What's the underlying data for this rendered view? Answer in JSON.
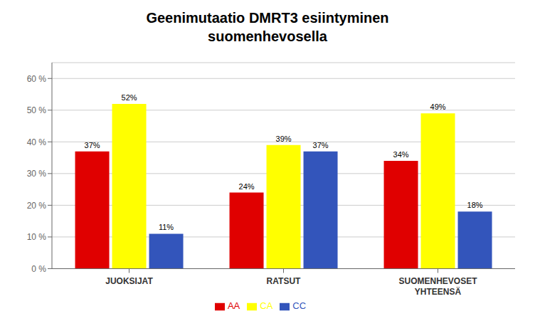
{
  "chart_data": {
    "type": "bar",
    "title": "Geenimutaatio DMRT3 esiintyminen\nsuomenhevosella",
    "categories": [
      "JUOKSIJAT",
      "RATSUT",
      "SUOMENHEVOSET\nYHTEENSÄ"
    ],
    "series": [
      {
        "name": "AA",
        "color": "#e00000",
        "values": [
          37,
          24,
          34
        ],
        "value_labels": [
          "37%",
          "24%",
          "34%"
        ]
      },
      {
        "name": "CA",
        "color": "#ffff00",
        "values": [
          52,
          39,
          49
        ],
        "value_labels": [
          "52%",
          "39%",
          "49%"
        ]
      },
      {
        "name": "CC",
        "color": "#3355bb",
        "values": [
          11,
          37,
          18
        ],
        "value_labels": [
          "11%",
          "37%",
          "18%"
        ]
      }
    ],
    "ylim": [
      0,
      65
    ],
    "yticks": [
      {
        "value": 0,
        "label": "0 %"
      },
      {
        "value": 10,
        "label": "10 %"
      },
      {
        "value": 20,
        "label": "20 %"
      },
      {
        "value": 30,
        "label": "30 %"
      },
      {
        "value": 40,
        "label": "40 %"
      },
      {
        "value": 50,
        "label": "50 %"
      },
      {
        "value": 60,
        "label": "60 %"
      }
    ],
    "grid": true,
    "legend": "bottom",
    "data_labels": true
  }
}
